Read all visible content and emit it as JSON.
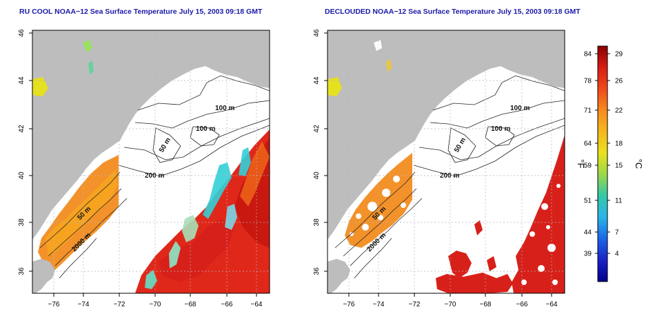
{
  "maps": [
    {
      "title": "RU COOL NOAA−12 Sea Surface Temperature July 15, 2003 09:18 GMT",
      "x_ticks": [
        "−76",
        "−74",
        "−72",
        "−70",
        "−68",
        "−66",
        "−64"
      ],
      "y_ticks": [
        "36",
        "38",
        "40",
        "42",
        "44",
        "46"
      ],
      "contour_labels": [
        "100 m",
        "100 m",
        "50 m",
        "200 m",
        "50 m",
        "2000 m"
      ]
    },
    {
      "title": "DECLOUDED NOAA−12 Sea Surface Temperature July 15, 2003 09:18 GMT",
      "x_ticks": [
        "−76",
        "−74",
        "−72",
        "−70",
        "−68",
        "−66",
        "−64"
      ],
      "y_ticks": [
        "36",
        "38",
        "40",
        "42",
        "44",
        "46"
      ],
      "contour_labels": [
        "100 m",
        "100 m",
        "50 m",
        "200 m",
        "50 m",
        "2000 m"
      ]
    }
  ],
  "colorbar": {
    "fahrenheit_label": "°F",
    "celsius_label": "°C",
    "fahrenheit_ticks": [
      "84",
      "78",
      "71",
      "64",
      "59",
      "51",
      "44",
      "39"
    ],
    "celsius_ticks": [
      "29",
      "26",
      "22",
      "18",
      "15",
      "11",
      "7",
      "4"
    ],
    "gradient_colors": [
      "#8b0000",
      "#d81c14",
      "#ef4a1a",
      "#f88a1e",
      "#f5b81e",
      "#e9e11e",
      "#9ad84a",
      "#33c8a8",
      "#2ab4e8",
      "#1a66e8",
      "#1a22c8",
      "#00008b"
    ]
  },
  "colors": {
    "land": "#bdbdbd",
    "water": "#ffffff",
    "title": "#1a1aa8",
    "grid": "#b4b4b4"
  }
}
